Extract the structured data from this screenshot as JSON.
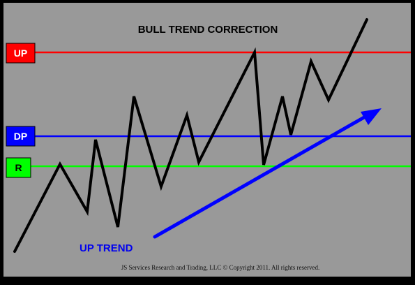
{
  "title": "BULL TREND CORRECTION",
  "levels": {
    "up": {
      "label": "UP",
      "color": "#ff0000",
      "text_color": "#ffffff"
    },
    "dp": {
      "label": "DP",
      "color": "#0000ff",
      "text_color": "#ffffff"
    },
    "r": {
      "label": "R",
      "color": "#00ff00",
      "text_color": "#000000"
    }
  },
  "trend_label": "UP TREND",
  "trend_color": "#0000ff",
  "price_color": "#000000",
  "background_color": "#999999",
  "copyright": "JS Services Research  and Trading, LLC © Copyright 2011. All rights reserved."
}
